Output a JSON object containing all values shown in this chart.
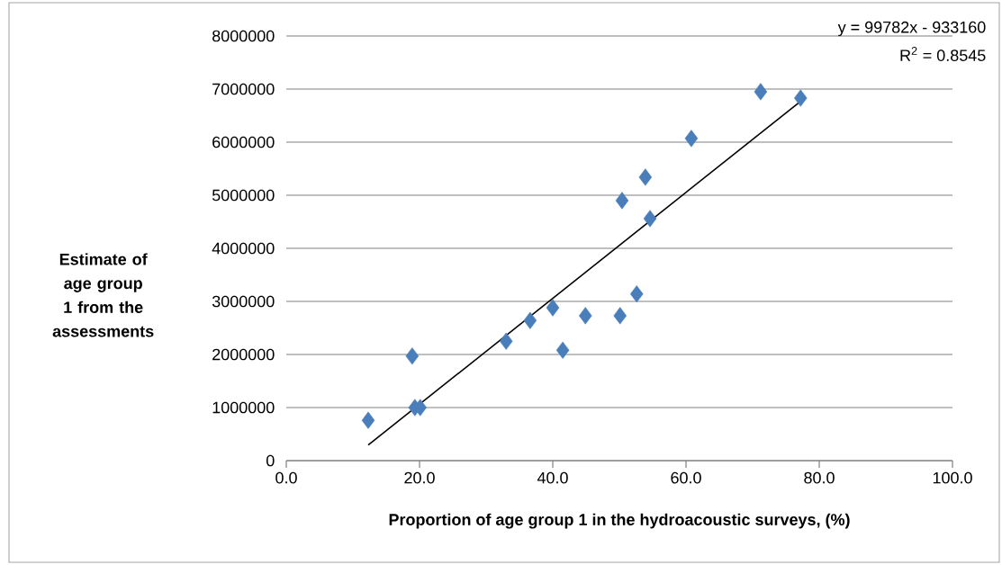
{
  "chart_data": {
    "type": "scatter",
    "xlabel": "Proportion of age group 1 in the hydroacoustic surveys, (%)",
    "ylabel": "Estimate of age group 1 from the assessments",
    "annotations": [
      "y = 99782x - 933160",
      "R$^{2}$ = 0.8545"
    ],
    "xlim": [
      0,
      100
    ],
    "ylim": [
      0,
      8000000
    ],
    "xticks": [
      {
        "value": 0,
        "label": "0.0"
      },
      {
        "value": 20,
        "label": "20.0"
      },
      {
        "value": 40,
        "label": "40.0"
      },
      {
        "value": 60,
        "label": "60.0"
      },
      {
        "value": 80,
        "label": "80.0"
      },
      {
        "value": 100,
        "label": "100.0"
      }
    ],
    "yticks": [
      0,
      1000000,
      2000000,
      3000000,
      4000000,
      5000000,
      6000000,
      7000000,
      8000000
    ],
    "grid": "y",
    "series": [
      {
        "marker": "diamond",
        "color": "#4a7ebb",
        "x": [
          12.3,
          18.9,
          19.3,
          20.1,
          33.0,
          36.6,
          40.0,
          41.5,
          44.9,
          50.1,
          52.6,
          50.4,
          53.9,
          54.6,
          60.8,
          71.2,
          77.2
        ],
        "values": [
          760000,
          1970000,
          1000000,
          1000000,
          2250000,
          2640000,
          2880000,
          2080000,
          2730000,
          2730000,
          3140000,
          4900000,
          5340000,
          4560000,
          6070000,
          6950000,
          6830000
        ]
      },
      {
        "type": "line",
        "marker": "none",
        "color": "#000000",
        "x": [
          12.3,
          77.2
        ],
        "values": [
          294000,
          6770000
        ]
      }
    ]
  }
}
